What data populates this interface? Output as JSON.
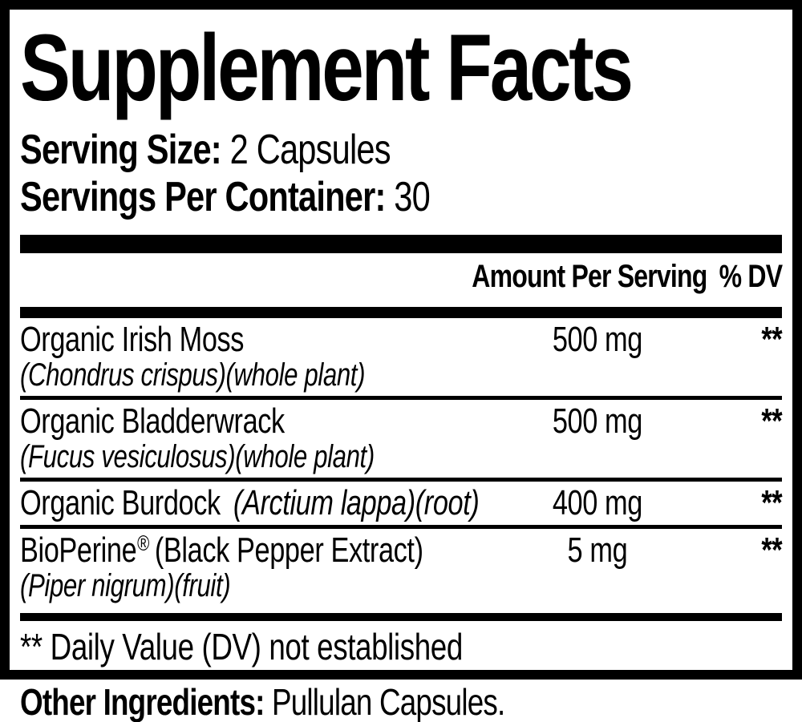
{
  "colors": {
    "ink": "#000000",
    "background": "#ffffff"
  },
  "title": "Supplement Facts",
  "serving": {
    "size_label": "Serving Size:",
    "size_value": "2 Capsules",
    "per_container_label": "Servings Per Container:",
    "per_container_value": "30"
  },
  "columns": {
    "amount_header": "Amount Per Serving",
    "dv_header": "% DV"
  },
  "rows": [
    {
      "name": "Organic Irish Moss",
      "latin": "(Chondrus crispus)(whole plant)",
      "amount": "500 mg",
      "dv": "**"
    },
    {
      "name": "Organic Bladderwrack",
      "latin": "(Fucus vesiculosus)(whole plant)",
      "amount": "500 mg",
      "dv": "**"
    },
    {
      "name": "Organic Burdock",
      "latin_inline": "(Arctium lappa)(root)",
      "amount": "400 mg",
      "dv": "**"
    },
    {
      "name": "BioPerine",
      "reg_mark": "®",
      "name_suffix": "(Black Pepper Extract)",
      "latin": "(Piper nigrum)(fruit)",
      "amount": "5 mg",
      "dv": "**"
    }
  ],
  "footnote": "** Daily Value (DV) not established",
  "other_ingredients": {
    "label": "Other Ingredients:",
    "value": "Pullulan Capsules."
  }
}
